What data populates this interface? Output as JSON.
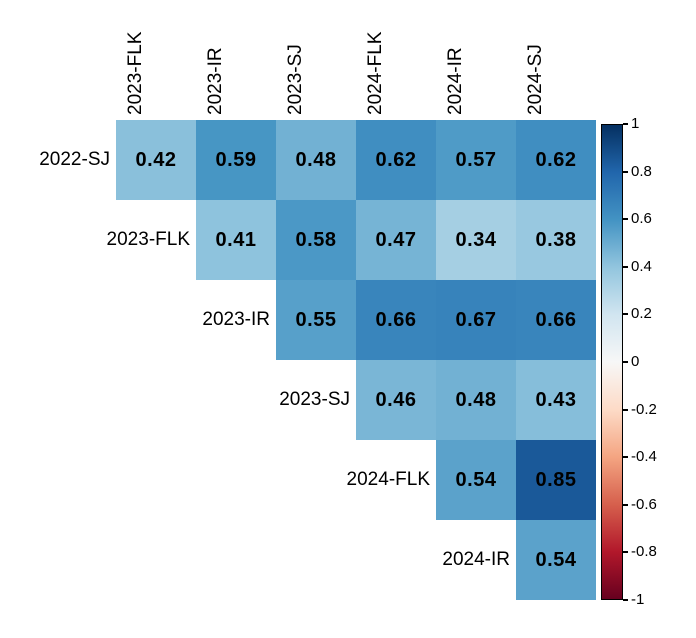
{
  "figure": {
    "background": "#ffffff",
    "text_color": "#000000"
  },
  "chart_data": {
    "type": "heatmap",
    "subtype": "upper-triangular correlation matrix",
    "title": "",
    "col_labels": [
      "2023-FLK",
      "2023-IR",
      "2023-SJ",
      "2024-FLK",
      "2024-IR",
      "2024-SJ"
    ],
    "row_labels": [
      "2022-SJ",
      "2023-FLK",
      "2023-IR",
      "2023-SJ",
      "2024-FLK",
      "2024-IR"
    ],
    "values": [
      [
        0.42,
        0.59,
        0.48,
        0.62,
        0.57,
        0.62
      ],
      [
        null,
        0.41,
        0.58,
        0.47,
        0.34,
        0.38
      ],
      [
        null,
        null,
        0.55,
        0.66,
        0.67,
        0.66
      ],
      [
        null,
        null,
        null,
        0.46,
        0.48,
        0.43
      ],
      [
        null,
        null,
        null,
        null,
        0.54,
        0.85
      ],
      [
        null,
        null,
        null,
        null,
        null,
        0.54
      ]
    ],
    "value_decimals": 2,
    "grid": false,
    "colorscale": {
      "name": "RdBu",
      "domain": [
        -1,
        1
      ],
      "anchors": [
        "#67001f",
        "#b2182b",
        "#d6604d",
        "#f4a582",
        "#fddbc7",
        "#f7f7f7",
        "#d1e5f0",
        "#92c5de",
        "#4393c3",
        "#2166ac",
        "#053061"
      ]
    },
    "colorbar": {
      "position": "right",
      "min": -1,
      "max": 1,
      "tick_values": [
        1,
        0.8,
        0.6,
        0.4,
        0.2,
        0,
        -0.2,
        -0.4,
        -0.6,
        -0.8,
        -1
      ],
      "tick_labels": [
        "1",
        "0.8",
        "0.6",
        "0.4",
        "0.2",
        "0",
        "-0.2",
        "-0.4",
        "-0.6",
        "-0.8",
        "-1"
      ]
    }
  }
}
